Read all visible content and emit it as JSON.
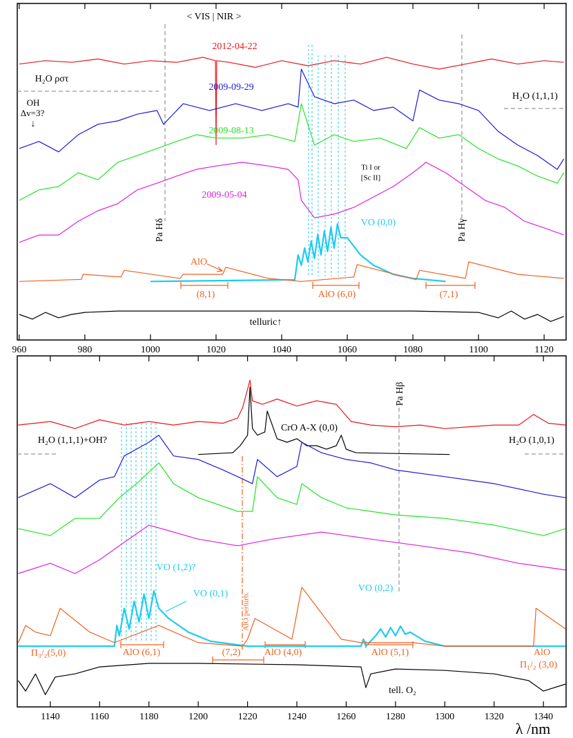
{
  "chart_data": [
    {
      "type": "line",
      "xlim": [
        959.4,
        1126.7
      ],
      "xticks": [
        960,
        980,
        1000,
        1020,
        1040,
        1060,
        1080,
        1100,
        1120
      ],
      "ylim": [
        0,
        100
      ],
      "series": [
        {
          "name": "2012-04-22",
          "color": "#e8171b",
          "x": [
            960,
            968,
            976,
            984,
            992,
            1000,
            1008,
            1016,
            1019.8,
            1020,
            1020.2,
            1024,
            1032,
            1040,
            1048,
            1056,
            1064,
            1072,
            1080,
            1088,
            1096,
            1104,
            1112,
            1120,
            1126
          ],
          "values": [
            82,
            83,
            82.5,
            83.5,
            82,
            83,
            82.5,
            84,
            83,
            58,
            83,
            82.5,
            81,
            83,
            81.5,
            83,
            82,
            84,
            82,
            80.5,
            82,
            83.5,
            82,
            83,
            82.5
          ]
        },
        {
          "name": "2009-09-29",
          "color": "#1a1ad8",
          "x": [
            960,
            966,
            972,
            978,
            984,
            990,
            996,
            1002,
            1004,
            1010,
            1018,
            1026,
            1034,
            1042,
            1045,
            1046,
            1050,
            1056,
            1062,
            1068,
            1074,
            1080,
            1082,
            1088,
            1094,
            1100,
            1106,
            1112,
            1118,
            1124,
            1126
          ],
          "values": [
            56.9,
            59,
            55.9,
            61,
            64.1,
            65.1,
            67.1,
            68.2,
            64.1,
            70.2,
            68.2,
            70.2,
            68.2,
            70.2,
            69.2,
            80.5,
            72.3,
            70.2,
            71.3,
            68.2,
            69.2,
            65.1,
            74.3,
            71.3,
            70.2,
            68.2,
            62,
            57.9,
            54.8,
            50.7,
            53.8
          ]
        },
        {
          "name": "2009-08-13",
          "color": "#22e622",
          "x": [
            960,
            966,
            972,
            978,
            984,
            990,
            996,
            1002,
            1008,
            1014,
            1020,
            1028,
            1036,
            1044,
            1046,
            1050,
            1056,
            1062,
            1070,
            1078,
            1082,
            1088,
            1094,
            1100,
            1106,
            1112,
            1118,
            1124,
            1126
          ],
          "values": [
            41.5,
            44.6,
            45.6,
            49.7,
            47.6,
            52.8,
            54.8,
            56.9,
            59,
            61,
            60,
            60,
            61,
            59,
            70.2,
            57.9,
            61,
            59,
            60,
            56.9,
            63.1,
            60,
            61,
            56.9,
            53.8,
            51.7,
            48.7,
            46.6,
            49.7
          ]
        },
        {
          "name": "2009-05-04",
          "color": "#e020e0",
          "x": [
            960,
            966,
            972,
            978,
            984,
            990,
            996,
            1002,
            1008,
            1014,
            1020,
            1028,
            1036,
            1042,
            1045,
            1046,
            1050,
            1056,
            1062,
            1068,
            1074,
            1080,
            1084,
            1090,
            1096,
            1102,
            1108,
            1114,
            1120,
            1126
          ],
          "values": [
            29,
            31.2,
            31.2,
            35.3,
            38.4,
            40.5,
            44.6,
            46.6,
            48.7,
            50.7,
            51.7,
            52.8,
            51.7,
            50.7,
            47.6,
            41.5,
            36.3,
            37.4,
            39.4,
            42.5,
            45.6,
            49.7,
            52.8,
            49.7,
            45.6,
            41.5,
            39.4,
            35.3,
            33.3,
            31.2
          ]
        },
        {
          "name": "VO (0,0)",
          "color": "#1ecbf0",
          "x": [
            1000,
            1044,
            1045,
            1046,
            1047,
            1048,
            1049,
            1050,
            1051,
            1052,
            1053,
            1054,
            1055,
            1056,
            1057,
            1058,
            1060,
            1064,
            1068,
            1074,
            1080,
            1090
          ],
          "values": [
            17.4,
            17.9,
            25.3,
            22.2,
            27.3,
            23.2,
            29.4,
            24.2,
            31.4,
            25.3,
            32.4,
            26.3,
            33.5,
            27.3,
            34.5,
            30.4,
            30.4,
            25.3,
            22.2,
            19.5,
            18.3,
            17.4
          ]
        },
        {
          "name": "AlO",
          "color": "#f06020",
          "x": [
            960,
            979,
            979.5,
            991,
            992,
            1009,
            1010,
            1022,
            1023,
            1036,
            1046,
            1062,
            1063,
            1081,
            1082,
            1096,
            1097,
            1112,
            1126
          ],
          "values": [
            17.4,
            18,
            19.5,
            18.7,
            20.7,
            18.3,
            19.5,
            19.5,
            21.6,
            18.3,
            17.4,
            18.7,
            22.4,
            17.9,
            20.7,
            18.3,
            23.2,
            19.5,
            18.3
          ]
        },
        {
          "name": "telluric↑",
          "color": "#000000",
          "x": [
            960,
            964,
            968,
            972,
            976,
            980,
            990,
            1000,
            1020,
            1040,
            1060,
            1080,
            1100,
            1106,
            1110,
            1114,
            1118,
            1122,
            1126
          ],
          "values": [
            7.6,
            6.2,
            8.2,
            6.6,
            7.6,
            8.2,
            8.6,
            8.6,
            8.6,
            8.6,
            8.6,
            8.6,
            8.2,
            6.6,
            8.6,
            6.2,
            7.6,
            5.5,
            7
          ]
        }
      ],
      "annotations": [
        "< VIS | NIR >",
        "H₂O ρστ",
        "OH",
        "Δv=3?",
        "↓",
        "H₂O (1,1,1)",
        "Ti I or",
        "[Sc II]",
        "Pa Hδ",
        "Pa Hγ",
        "(8,1)",
        "AlO (6,0)",
        "(7,1)"
      ]
    },
    {
      "type": "line",
      "xlabel": "λ /nm",
      "xlim": [
        1126.6,
        1349.2
      ],
      "xticks": [
        1140,
        1160,
        1180,
        1200,
        1220,
        1240,
        1260,
        1280,
        1300,
        1320,
        1340
      ],
      "ylim": [
        0,
        100
      ],
      "series": [
        {
          "color": "#e8171b",
          "x": [
            1127,
            1140,
            1150,
            1160,
            1170,
            1180,
            1190,
            1200,
            1210,
            1216,
            1218,
            1221,
            1222,
            1226,
            1232,
            1240,
            1248,
            1256,
            1262,
            1270,
            1280,
            1290,
            1300,
            1310,
            1320,
            1330,
            1336,
            1342,
            1349
          ],
          "values": [
            80.3,
            81.3,
            79.3,
            81.8,
            80.3,
            81.3,
            80.3,
            81.3,
            80.8,
            82.3,
            85.2,
            93.1,
            87.2,
            86.2,
            87.7,
            85.7,
            87.2,
            86.2,
            81.3,
            80.3,
            79.8,
            80.3,
            79.3,
            79.8,
            80.3,
            80.3,
            83.3,
            80.8,
            80.3
          ]
        },
        {
          "name": "CrO A-X (0,0)",
          "color": "#000000",
          "x": [
            1200,
            1214,
            1217,
            1220,
            1221,
            1222,
            1224,
            1227,
            1228,
            1232,
            1236,
            1240,
            1244,
            1248,
            1252,
            1256,
            1258,
            1260,
            1264,
            1302
          ],
          "values": [
            71.9,
            72.4,
            74.4,
            77.4,
            91.1,
            79.3,
            77.4,
            78.3,
            84.3,
            76.4,
            75.4,
            76.4,
            74.4,
            74.4,
            73.4,
            74.4,
            77.4,
            73.4,
            72.4,
            71.9
          ]
        },
        {
          "color": "#1a1ad8",
          "x": [
            1127,
            1140,
            1150,
            1160,
            1166,
            1170,
            1180,
            1184,
            1190,
            1200,
            1210,
            1216,
            1222,
            1224,
            1232,
            1240,
            1242,
            1250,
            1260,
            1270,
            1280,
            1300,
            1320,
            1340,
            1349
          ],
          "values": [
            59.6,
            63.6,
            59.6,
            64.6,
            65.6,
            71.5,
            75.4,
            77.4,
            71.5,
            70.5,
            67.5,
            65.6,
            63.6,
            70.5,
            65.6,
            68.5,
            75.4,
            72.4,
            70.5,
            69.5,
            67.5,
            65.6,
            63.6,
            60.6,
            59.6
          ]
        },
        {
          "color": "#22e622",
          "x": [
            1127,
            1140,
            1150,
            1160,
            1168,
            1175,
            1184,
            1190,
            1200,
            1216,
            1222,
            1224,
            1232,
            1240,
            1242,
            1250,
            1260,
            1270,
            1280,
            1300,
            1320,
            1340,
            1349
          ],
          "values": [
            50.8,
            48.8,
            53.7,
            53.7,
            59.6,
            63.6,
            69.5,
            63.6,
            59.6,
            55.7,
            55.7,
            65.6,
            59.6,
            57.7,
            63.6,
            59.6,
            56.7,
            55.7,
            54.7,
            53.7,
            51.8,
            48.8,
            50.8
          ]
        },
        {
          "color": "#e020e0",
          "x": [
            1127,
            1140,
            1150,
            1160,
            1168,
            1180,
            1190,
            1200,
            1216,
            1230,
            1250,
            1270,
            1290,
            1310,
            1330,
            1349
          ],
          "values": [
            38,
            40.9,
            38,
            41.9,
            45.9,
            51.8,
            49.8,
            47.8,
            45.9,
            47.8,
            49.8,
            47.8,
            45.9,
            43.9,
            40.9,
            39
          ]
        },
        {
          "name": "VO (0,1)",
          "color": "#1ecbf0",
          "x": [
            1127,
            1166,
            1167,
            1168,
            1170,
            1172,
            1174,
            1176,
            1178,
            1180,
            1182,
            1184,
            1188,
            1196,
            1205,
            1220,
            1266,
            1267,
            1268,
            1272,
            1274,
            1276,
            1278,
            1280,
            1282,
            1284,
            1286,
            1292,
            1300,
            1349
          ],
          "values": [
            17.3,
            17.3,
            23.2,
            20.3,
            28.1,
            22.2,
            30.1,
            24.2,
            32.1,
            25.2,
            33.1,
            28.1,
            25.2,
            21.3,
            18.7,
            17.3,
            17.3,
            19.3,
            17.3,
            20.3,
            22.2,
            19.9,
            22.6,
            20.3,
            23,
            20.7,
            21.3,
            18.7,
            17.3,
            17.3
          ]
        },
        {
          "color": "#f06020",
          "x": [
            1127,
            1130,
            1134,
            1140,
            1144,
            1156,
            1166,
            1184,
            1200,
            1218,
            1220,
            1223,
            1238,
            1242,
            1258,
            1266,
            1287,
            1300,
            1336,
            1337,
            1349
          ],
          "values": [
            18.3,
            23.2,
            21.3,
            20.3,
            28.1,
            21.3,
            18.3,
            23.2,
            18.3,
            17.3,
            19.3,
            25.2,
            19.3,
            34.1,
            19.3,
            18.3,
            18.3,
            17.3,
            17.3,
            28.1,
            22.2
          ]
        },
        {
          "name": "tell. O₂",
          "color": "#000000",
          "x": [
            1127,
            1130,
            1134,
            1138,
            1142,
            1150,
            1160,
            1180,
            1200,
            1240,
            1266,
            1268,
            1270,
            1280,
            1300,
            1320,
            1334,
            1340,
            1349
          ],
          "values": [
            7.5,
            4.5,
            9.4,
            3.5,
            8.5,
            9.4,
            11.4,
            12.4,
            12.4,
            12,
            11.4,
            5.5,
            9.4,
            10.8,
            10.4,
            9.4,
            7.5,
            4.5,
            6.5
          ]
        }
      ],
      "annotations": [
        "Pa Hβ",
        "H₂O (1,1,1)+OH?",
        "H₂O (1,0,1)",
        "VO (1,2)?",
        "AlO perturb.",
        "VO (0,2)",
        "Π₃/₂(5,0)",
        "AlO (6,1)",
        "(7,2)",
        "AlO (4,0)",
        "AlO (5,1)",
        "AlO",
        "Π₁/₂ (3,0)"
      ]
    }
  ]
}
